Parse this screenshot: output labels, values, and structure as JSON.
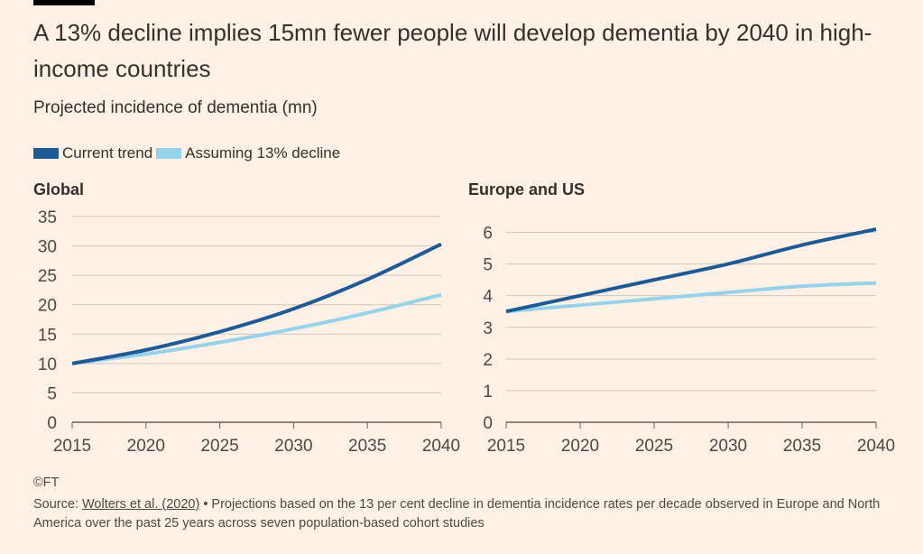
{
  "title": "A 13% decline implies 15mn fewer people will develop dementia by 2040 in high-income countries",
  "subtitle": "Projected incidence of dementia (mn)",
  "legend": [
    {
      "label": "Current trend",
      "color": "#1d5a96"
    },
    {
      "label": "Assuming 13% decline",
      "color": "#96d3ea"
    }
  ],
  "footer": {
    "copyright": "©FT",
    "source_prefix": "Source: ",
    "source_link": "Wolters et al. (2020)",
    "note": " • Projections based on the 13 per cent decline in dementia incidence rates per decade observed in Europe and North America over the past 25 years across seven population-based cohort studies"
  },
  "chart_data": [
    {
      "type": "line",
      "title": "Global",
      "x": [
        2015,
        2020,
        2025,
        2030,
        2035,
        2040
      ],
      "xlim": [
        2015,
        2040
      ],
      "ylim": [
        0,
        35
      ],
      "yticks": [
        0,
        5,
        10,
        15,
        20,
        25,
        30,
        35
      ],
      "grid": true,
      "series": [
        {
          "name": "Current trend",
          "values": [
            10,
            12.3,
            15.4,
            19.3,
            24.3,
            30.3
          ]
        },
        {
          "name": "Assuming 13% decline",
          "values": [
            10,
            11.6,
            13.6,
            15.9,
            18.6,
            21.7
          ]
        }
      ]
    },
    {
      "type": "line",
      "title": "Europe and US",
      "x": [
        2015,
        2020,
        2025,
        2030,
        2035,
        2040
      ],
      "xlim": [
        2015,
        2040
      ],
      "ylim": [
        0,
        6
      ],
      "yticks": [
        0,
        1,
        2,
        3,
        4,
        5,
        6
      ],
      "grid": true,
      "series": [
        {
          "name": "Current trend",
          "values": [
            3.5,
            4.0,
            4.5,
            5.0,
            5.6,
            6.1
          ]
        },
        {
          "name": "Assuming 13% decline",
          "values": [
            3.5,
            3.7,
            3.9,
            4.1,
            4.3,
            4.4
          ]
        }
      ]
    }
  ]
}
